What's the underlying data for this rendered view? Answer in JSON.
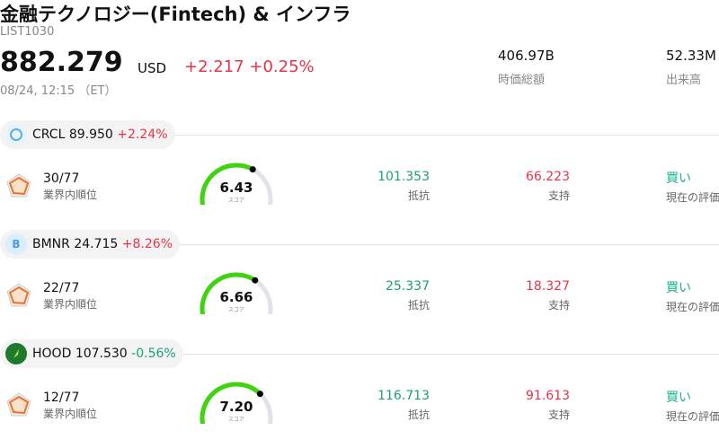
{
  "header": {
    "title": "金融テクノロジー(Fintech) & インフラ",
    "code": "LIST1030",
    "price": "882.279",
    "currency": "USD",
    "change": "+2.217",
    "change_pct": "+0.25%",
    "time": "08/24, 12:15 （ET）",
    "stats": [
      {
        "value": "406.97B",
        "label": "時価総額"
      },
      {
        "value": "52.33M",
        "label": "出来高"
      }
    ]
  },
  "stocks": [
    {
      "ticker": "CRCL",
      "price": "89.950",
      "change_pct": "+2.24%",
      "rank": "30/77",
      "rank_label": "業界内順位",
      "score": "6.43",
      "score_label": "スコア",
      "resistance": "101.353",
      "resistance_label": "抵抗",
      "support": "66.223",
      "support_label": "支持",
      "rating": "買い",
      "rating_label": "現在の評価"
    },
    {
      "ticker": "BMNR",
      "logo": "B",
      "price": "24.715",
      "change_pct": "+8.26%",
      "rank": "22/77",
      "rank_label": "業界内順位",
      "score": "6.66",
      "score_label": "スコア",
      "resistance": "25.337",
      "resistance_label": "抵抗",
      "support": "18.327",
      "support_label": "支持",
      "rating": "買い",
      "rating_label": "現在の評価"
    },
    {
      "ticker": "HOOD",
      "price": "107.530",
      "change_pct": "-0.56%",
      "rank": "12/77",
      "rank_label": "業界内順位",
      "score": "7.20",
      "score_label": "スコア",
      "resistance": "116.713",
      "resistance_label": "抵抗",
      "support": "91.613",
      "support_label": "支持",
      "rating": "買い",
      "rating_label": "現在の評価"
    }
  ]
}
